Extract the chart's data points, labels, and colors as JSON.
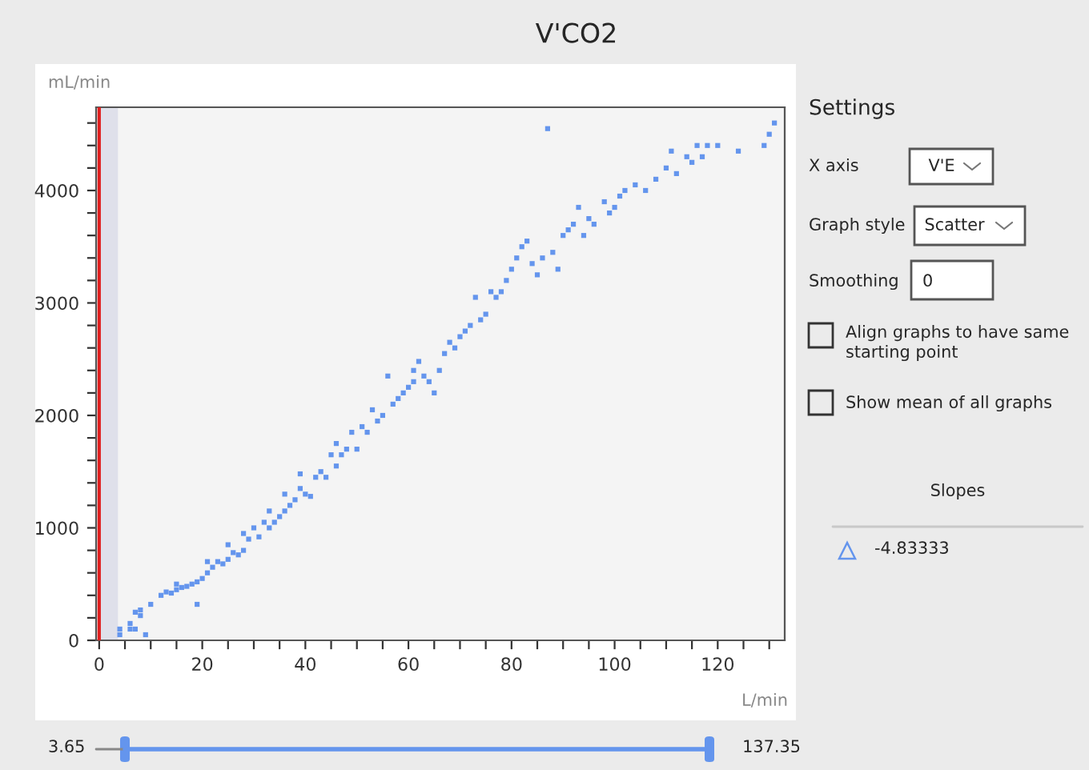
{
  "chart_data": {
    "type": "scatter",
    "title": "V'CO2",
    "xlabel": "L/min",
    "ylabel": "mL/min",
    "x": [
      4,
      4,
      6,
      6,
      7,
      7,
      8,
      8,
      9,
      10,
      12,
      13,
      14,
      15,
      15,
      16,
      17,
      18,
      19,
      19,
      20,
      21,
      21,
      22,
      23,
      24,
      25,
      25,
      26,
      27,
      28,
      28,
      29,
      30,
      31,
      32,
      33,
      33,
      34,
      35,
      36,
      36,
      37,
      38,
      39,
      39,
      40,
      41,
      42,
      43,
      44,
      45,
      46,
      46,
      47,
      48,
      49,
      50,
      51,
      52,
      53,
      54,
      55,
      56,
      57,
      58,
      59,
      60,
      61,
      61,
      62,
      63,
      64,
      65,
      66,
      67,
      68,
      69,
      70,
      71,
      72,
      73,
      74,
      75,
      76,
      77,
      78,
      79,
      80,
      81,
      82,
      83,
      84,
      85,
      86,
      87,
      88,
      89,
      90,
      91,
      92,
      93,
      94,
      95,
      96,
      98,
      99,
      100,
      101,
      102,
      104,
      106,
      108,
      110,
      111,
      112,
      114,
      115,
      116,
      117,
      118,
      120,
      124,
      129,
      130,
      131
    ],
    "series": [
      {
        "color": "#6495ed",
        "values": [
          50,
          100,
          150,
          100,
          100,
          250,
          270,
          220,
          50,
          320,
          400,
          430,
          420,
          450,
          500,
          470,
          480,
          500,
          520,
          320,
          550,
          600,
          700,
          650,
          700,
          680,
          720,
          850,
          780,
          760,
          800,
          950,
          900,
          1000,
          920,
          1050,
          1150,
          1000,
          1050,
          1100,
          1150,
          1300,
          1200,
          1250,
          1350,
          1480,
          1300,
          1280,
          1450,
          1500,
          1450,
          1650,
          1550,
          1750,
          1650,
          1700,
          1850,
          1700,
          1900,
          1850,
          2050,
          1950,
          2000,
          2350,
          2100,
          2150,
          2200,
          2250,
          2300,
          2400,
          2480,
          2350,
          2300,
          2200,
          2400,
          2550,
          2650,
          2600,
          2700,
          2750,
          2800,
          3050,
          2850,
          2900,
          3100,
          3050,
          3100,
          3200,
          3300,
          3400,
          3500,
          3550,
          3350,
          3250,
          3400,
          4550,
          3450,
          3300,
          3600,
          3650,
          3700,
          3850,
          3600,
          3750,
          3700,
          3900,
          3800,
          3850,
          3950,
          4000,
          4050,
          4000,
          4100,
          4200,
          4350,
          4150,
          4300,
          4250,
          4400,
          4300,
          4400,
          4400,
          4350,
          4400,
          4500,
          4600
        ]
      }
    ],
    "marker": "square",
    "xlim": [
      -0.6,
      133
    ],
    "ylim": [
      0,
      4740
    ],
    "xticks": [
      0,
      {
        "value": 5,
        "label": null
      },
      {
        "value": 10,
        "label": null
      },
      {
        "value": 15,
        "label": null
      },
      20,
      {
        "value": 25,
        "label": null
      },
      {
        "value": 30,
        "label": null
      },
      {
        "value": 35,
        "label": null
      },
      40,
      {
        "value": 45,
        "label": null
      },
      {
        "value": 50,
        "label": null
      },
      {
        "value": 55,
        "label": null
      },
      60,
      {
        "value": 65,
        "label": null
      },
      {
        "value": 70,
        "label": null
      },
      {
        "value": 75,
        "label": null
      },
      80,
      {
        "value": 85,
        "label": null
      },
      {
        "value": 90,
        "label": null
      },
      {
        "value": 95,
        "label": null
      },
      100,
      {
        "value": 105,
        "label": null
      },
      {
        "value": 110,
        "label": null
      },
      {
        "value": 115,
        "label": null
      },
      120,
      {
        "value": 125,
        "label": null
      },
      {
        "value": 130,
        "label": null
      }
    ],
    "yticks": [
      0,
      {
        "value": 200,
        "label": null
      },
      {
        "value": 400,
        "label": null
      },
      {
        "value": 600,
        "label": null
      },
      {
        "value": 800,
        "label": null
      },
      1000,
      {
        "value": 1200,
        "label": null
      },
      {
        "value": 1400,
        "label": null
      },
      {
        "value": 1600,
        "label": null
      },
      {
        "value": 1800,
        "label": null
      },
      2000,
      {
        "value": 2200,
        "label": null
      },
      {
        "value": 2400,
        "label": null
      },
      {
        "value": 2600,
        "label": null
      },
      {
        "value": 2800,
        "label": null
      },
      3000,
      {
        "value": 3200,
        "label": null
      },
      {
        "value": 3400,
        "label": null
      },
      {
        "value": 3600,
        "label": null
      },
      {
        "value": 3800,
        "label": null
      },
      4000,
      {
        "value": 4200,
        "label": null
      },
      {
        "value": 4400,
        "label": null
      },
      {
        "value": 4600,
        "label": null
      }
    ],
    "ref_lines": [
      {
        "axis": "x",
        "value": 0,
        "color": "#e02020"
      }
    ],
    "bands": [
      {
        "axis": "x",
        "from": 0,
        "to": 3.65,
        "color": "#dfe0ea"
      }
    ],
    "grid": false,
    "legend": false,
    "annotations": [
      "Settings",
      "X axis",
      "V'E",
      "Graph style",
      "Scatter",
      "Smoothing",
      "0",
      "Align graphs to have same starting point",
      "Show mean of all graphs",
      "Slopes",
      "-4.83333",
      "3.65",
      "137.35"
    ]
  }
}
